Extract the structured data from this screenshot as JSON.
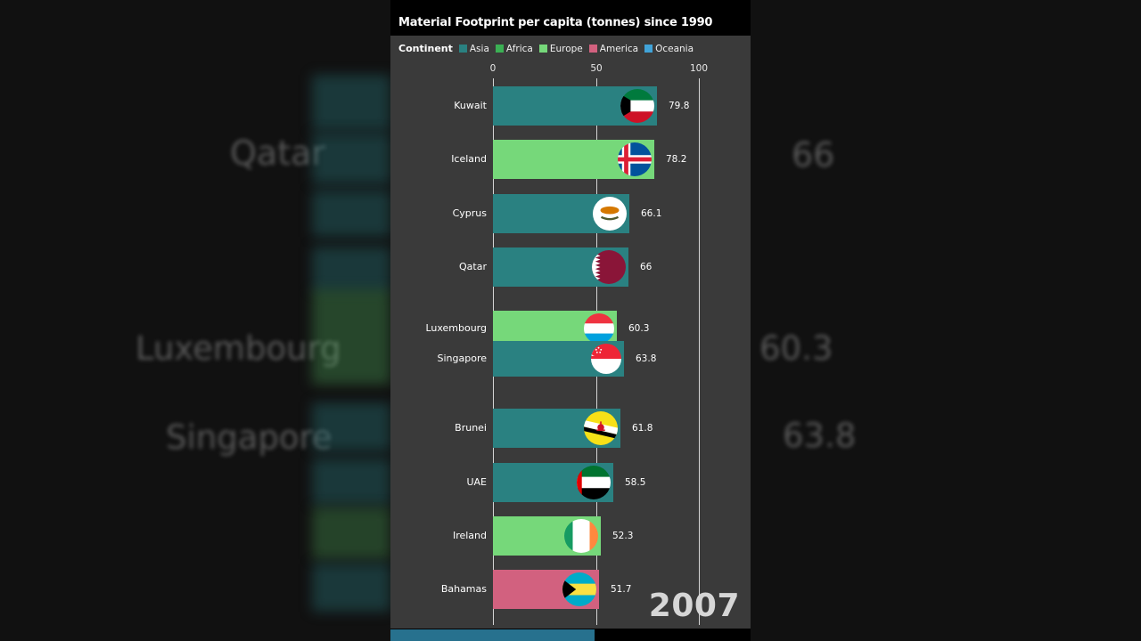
{
  "chart": {
    "title": "Material Footprint per capita (tonnes) since 1990",
    "legend_title": "Continent",
    "year": "2007"
  },
  "legend_items": [
    {
      "label": "Asia",
      "color": "#2a8181"
    },
    {
      "label": "Africa",
      "color": "#3bb054"
    },
    {
      "label": "Europe",
      "color": "#76d87a"
    },
    {
      "label": "America",
      "color": "#d2617f"
    },
    {
      "label": "Oceania",
      "color": "#41a3d8"
    }
  ],
  "chart_data": {
    "type": "bar",
    "orientation": "horizontal",
    "title": "Material Footprint per capita (tonnes) since 1990",
    "year_label": "2007",
    "x_ticks": [
      0,
      50,
      100
    ],
    "xlim": [
      0,
      100
    ],
    "unit": "tonnes per capita",
    "legend_position": "top",
    "grid": true,
    "bars": [
      {
        "country": "Kuwait",
        "value": 79.8,
        "continent": "Asia",
        "flag": "kw"
      },
      {
        "country": "Iceland",
        "value": 78.2,
        "continent": "Europe",
        "flag": "is"
      },
      {
        "country": "Cyprus",
        "value": 66.1,
        "continent": "Asia",
        "flag": "cy"
      },
      {
        "country": "Qatar",
        "value": 66,
        "continent": "Asia",
        "flag": "qa"
      },
      {
        "country": "Luxembourg",
        "value": 60.3,
        "continent": "Europe",
        "flag": "lu"
      },
      {
        "country": "Singapore",
        "value": 63.8,
        "continent": "Asia",
        "flag": "sg"
      },
      {
        "country": "Brunei",
        "value": 61.8,
        "continent": "Asia",
        "flag": "bn"
      },
      {
        "country": "UAE",
        "value": 58.5,
        "continent": "Asia",
        "flag": "ae"
      },
      {
        "country": "Ireland",
        "value": 52.3,
        "continent": "Europe",
        "flag": "ie"
      },
      {
        "country": "Bahamas",
        "value": 51.7,
        "continent": "America",
        "flag": "bs"
      }
    ],
    "series_legend": [
      "Asia",
      "Africa",
      "Europe",
      "America",
      "Oceania"
    ]
  },
  "background": {
    "ghost_labels": [
      {
        "text": "Qatar"
      },
      {
        "text": "Luxembourg"
      },
      {
        "text": "Singapore"
      },
      {
        "text": "66"
      },
      {
        "text": "60.3"
      },
      {
        "text": "63.8"
      }
    ]
  }
}
